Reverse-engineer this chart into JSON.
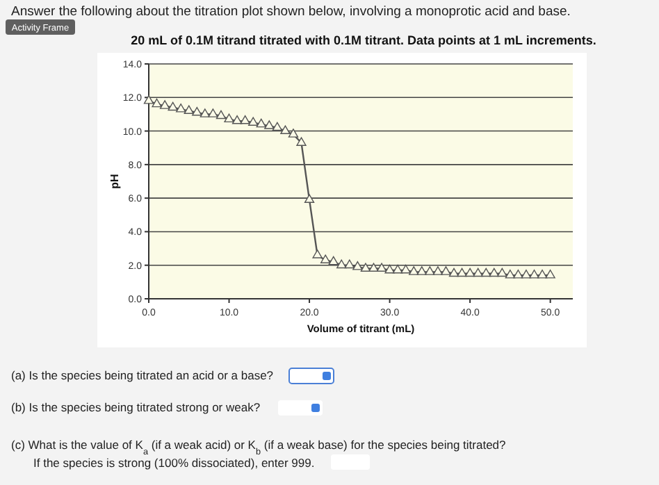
{
  "chart_data": {
    "type": "line",
    "title": "20 mL of 0.1M titrand titrated with 0.1M titrant. Data points at 1 mL increments.",
    "xlabel": "Volume of titrant (mL)",
    "ylabel": "pH",
    "x": [
      0,
      1,
      2,
      3,
      4,
      5,
      6,
      7,
      8,
      9,
      10,
      11,
      12,
      13,
      14,
      15,
      16,
      17,
      18,
      19,
      20,
      21,
      22,
      23,
      24,
      25,
      26,
      27,
      28,
      29,
      30,
      31,
      32,
      33,
      34,
      35,
      36,
      37,
      38,
      39,
      40,
      41,
      42,
      43,
      44,
      45,
      46,
      47,
      48,
      49,
      50
    ],
    "series": [
      {
        "color": "#555555",
        "values": [
          11.8,
          11.6,
          11.5,
          11.4,
          11.3,
          11.2,
          11.1,
          11.0,
          11.0,
          10.9,
          10.7,
          10.6,
          10.6,
          10.5,
          10.4,
          10.3,
          10.2,
          10.0,
          9.8,
          9.3,
          5.9,
          2.6,
          2.3,
          2.2,
          2.0,
          2.0,
          1.9,
          1.8,
          1.8,
          1.8,
          1.7,
          1.7,
          1.7,
          1.6,
          1.6,
          1.6,
          1.6,
          1.6,
          1.5,
          1.5,
          1.5,
          1.5,
          1.5,
          1.5,
          1.5,
          1.4,
          1.4,
          1.4,
          1.4,
          1.4,
          1.4
        ]
      }
    ],
    "xlim": [
      0,
      52.8
    ],
    "ylim": [
      0,
      14
    ],
    "xticks": [
      {
        "value": 0,
        "label": "0.0"
      },
      {
        "value": 10,
        "label": "10.0"
      },
      {
        "value": 20,
        "label": "20.0"
      },
      {
        "value": 30,
        "label": "30.0"
      },
      {
        "value": 40,
        "label": "40.0"
      },
      {
        "value": 50,
        "label": "50.0"
      }
    ],
    "yticks": [
      {
        "value": 0,
        "label": "0.0"
      },
      {
        "value": 2,
        "label": "2.0"
      },
      {
        "value": 4,
        "label": "4.0"
      },
      {
        "value": 6,
        "label": "6.0"
      },
      {
        "value": 8,
        "label": "8.0"
      },
      {
        "value": 10,
        "label": "10.0"
      },
      {
        "value": 12,
        "label": "12.0"
      },
      {
        "value": 14,
        "label": "14.0"
      }
    ],
    "grid": "y",
    "marker": "triangle",
    "line_style": "solid",
    "annotations": [
      "Answer the following about the titration plot shown below, involving a monoprotic acid and base.",
      "Activity Frame",
      "(a) Is the species being titrated an acid or a base?",
      "(b) Is the species being titrated strong or weak?",
      "(c) What is the value of K$_{a}$ (if a weak acid) or K$_{b}$ (if a weak base) for the species being titrated?",
      "If the species is strong (100% dissociated), enter 999."
    ]
  }
}
